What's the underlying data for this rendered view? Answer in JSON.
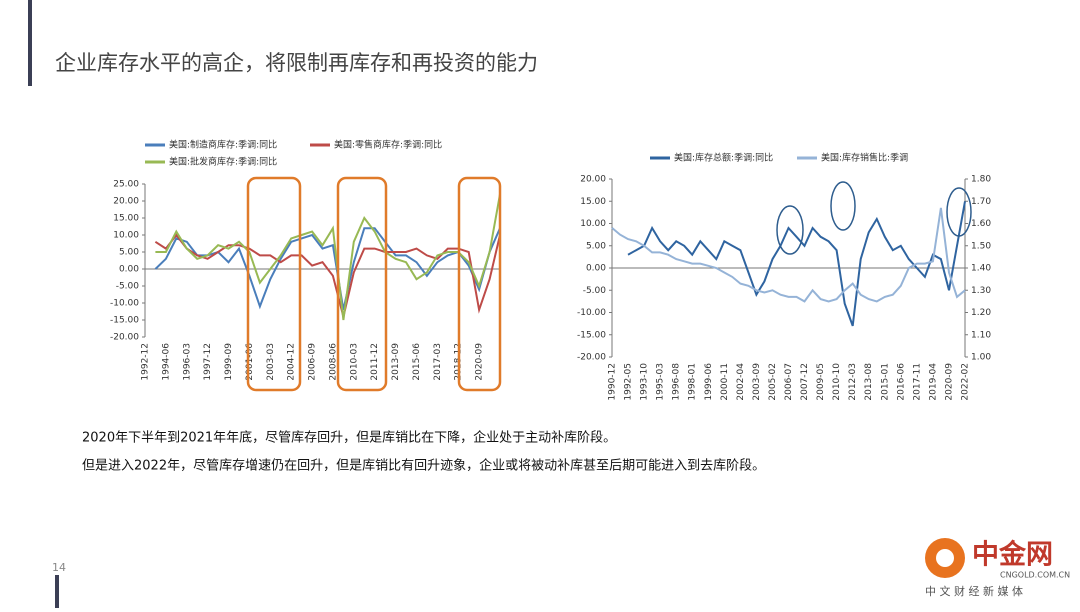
{
  "header": {
    "title": "企业库存水平的高企，将限制再库存和再投资的能力"
  },
  "chart_data": [
    {
      "type": "line",
      "categories": [
        "1992-12",
        null,
        "1994-06",
        null,
        "1996-03",
        null,
        "1997-12",
        null,
        "1999-09",
        null,
        "2001-06",
        null,
        "2003-03",
        null,
        "2004-12",
        null,
        "2006-09",
        null,
        "2008-06",
        null,
        "2010-03",
        null,
        "2011-12",
        null,
        "2013-09",
        null,
        "2015-06",
        null,
        "2017-03",
        null,
        "2018-12",
        null,
        "2020-09",
        null,
        null
      ],
      "series": [
        {
          "name": "美国:制造商库存:季调:同比",
          "color": "#4a7ebb",
          "values": [
            null,
            0,
            3,
            9,
            8,
            4,
            4,
            5,
            2,
            6,
            -2,
            -11,
            -3,
            3,
            8,
            9,
            10,
            6,
            7,
            -12,
            2,
            12,
            12,
            8,
            4,
            4,
            2,
            -2,
            2,
            4,
            5,
            1,
            -6,
            5,
            12
          ]
        },
        {
          "name": "美国:零售商库存:季调:同比",
          "color": "#be4b48",
          "values": [
            null,
            8,
            6,
            10,
            6,
            4,
            3,
            5,
            7,
            7,
            6,
            4,
            4,
            2,
            4,
            4,
            1,
            2,
            -2,
            -14,
            -1,
            6,
            6,
            5,
            5,
            5,
            6,
            4,
            3,
            6,
            6,
            5,
            -12,
            -3,
            10
          ]
        },
        {
          "name": "美国:批发商库存:季调:同比",
          "color": "#98b954",
          "values": [
            null,
            5,
            5,
            11,
            6,
            3,
            4,
            7,
            6,
            8,
            5,
            -4,
            0,
            4,
            9,
            10,
            11,
            7,
            12,
            -15,
            8,
            15,
            11,
            5,
            3,
            2,
            -3,
            -1,
            4,
            5,
            5,
            2,
            -5,
            5,
            22
          ]
        }
      ],
      "ylim": [
        -20,
        25
      ],
      "yticks": [
        {
          "value": -20,
          "label": "-20.00"
        },
        {
          "value": -15,
          "label": "-15.00"
        },
        {
          "value": -10,
          "label": "-10.00"
        },
        {
          "value": -5,
          "label": "-5.00"
        },
        {
          "value": 0,
          "label": "0.00"
        },
        {
          "value": 5,
          "label": "5.00"
        },
        {
          "value": 10,
          "label": "10.00"
        },
        {
          "value": 15,
          "label": "15.00"
        },
        {
          "value": 20,
          "label": "20.00"
        },
        {
          "value": 25,
          "label": "25.00"
        }
      ],
      "grid": false
    },
    {
      "type": "line",
      "categories": [
        "1990-12",
        null,
        "1992-05",
        null,
        "1993-10",
        null,
        "1995-03",
        null,
        "1996-08",
        null,
        "1998-01",
        null,
        "1999-06",
        null,
        "2000-11",
        null,
        "2002-04",
        null,
        "2003-09",
        null,
        "2005-02",
        null,
        "2006-07",
        null,
        "2007-12",
        null,
        "2009-05",
        null,
        "2010-10",
        null,
        "2012-03",
        null,
        "2013-08",
        null,
        "2015-01",
        null,
        "2016-06",
        null,
        "2017-11",
        null,
        "2019-04",
        null,
        "2020-09",
        null,
        "2022-02"
      ],
      "series": [
        {
          "name": "美国:库存总额:季调:同比",
          "color": "#2f64a0",
          "values": [
            null,
            null,
            3,
            4,
            5,
            9,
            6,
            4,
            6,
            5,
            3,
            6,
            4,
            2,
            6,
            5,
            4,
            -1,
            -6,
            -3,
            2,
            5,
            9,
            7,
            5,
            9,
            7,
            6,
            4,
            -8,
            -13,
            2,
            8,
            11,
            7,
            4,
            5,
            2,
            0,
            -2,
            3,
            2,
            -5,
            5,
            15
          ]
        },
        {
          "name": "美国:库存销售比:季调",
          "color": "#95b3d7",
          "axis": "y2",
          "values": [
            1.58,
            1.55,
            1.53,
            1.52,
            1.5,
            1.47,
            1.47,
            1.46,
            1.44,
            1.43,
            1.42,
            1.42,
            1.41,
            1.4,
            1.38,
            1.36,
            1.33,
            1.32,
            1.3,
            1.29,
            1.3,
            1.28,
            1.27,
            1.27,
            1.25,
            1.3,
            1.26,
            1.25,
            1.26,
            1.3,
            1.33,
            1.28,
            1.26,
            1.25,
            1.27,
            1.28,
            1.32,
            1.4,
            1.42,
            1.42,
            1.43,
            1.67,
            1.38,
            1.27,
            1.3
          ]
        }
      ],
      "ylim": [
        -20,
        20
      ],
      "yticks": [
        {
          "value": -20,
          "label": "-20.00"
        },
        {
          "value": -15,
          "label": "-15.00"
        },
        {
          "value": -10,
          "label": "-10.00"
        },
        {
          "value": -5,
          "label": "-5.00"
        },
        {
          "value": 0,
          "label": "0.00"
        },
        {
          "value": 5,
          "label": "5.00"
        },
        {
          "value": 10,
          "label": "10.00"
        },
        {
          "value": 15,
          "label": "15.00"
        },
        {
          "value": 20,
          "label": "20.00"
        }
      ],
      "y2lim": [
        1,
        1.8
      ],
      "y2ticks": [
        {
          "value": 1,
          "label": "1.00"
        },
        {
          "value": 1.1,
          "label": "1.10"
        },
        {
          "value": 1.2,
          "label": "1.20"
        },
        {
          "value": 1.3,
          "label": "1.30"
        },
        {
          "value": 1.4,
          "label": "1.40"
        },
        {
          "value": 1.5,
          "label": "1.50"
        },
        {
          "value": 1.6,
          "label": "1.60"
        },
        {
          "value": 1.7,
          "label": "1.70"
        },
        {
          "value": 1.8,
          "label": "1.80"
        }
      ],
      "grid": false
    }
  ],
  "paragraphs": [
    "2020年下半年到2021年年底，尽管库存回升，但是库销比在下降，企业处于主动补库阶段。",
    "但是进入2022年，尽管库存增速仍在回升，但是库销比有回升迹象，企业或将被动补库甚至后期可能进入到去库阶段。"
  ],
  "page_number": "14",
  "logo": {
    "name": "中金网",
    "domain": "CNGOLD.COM.CN",
    "tagline": "中 文 财 经 新 媒 体"
  }
}
